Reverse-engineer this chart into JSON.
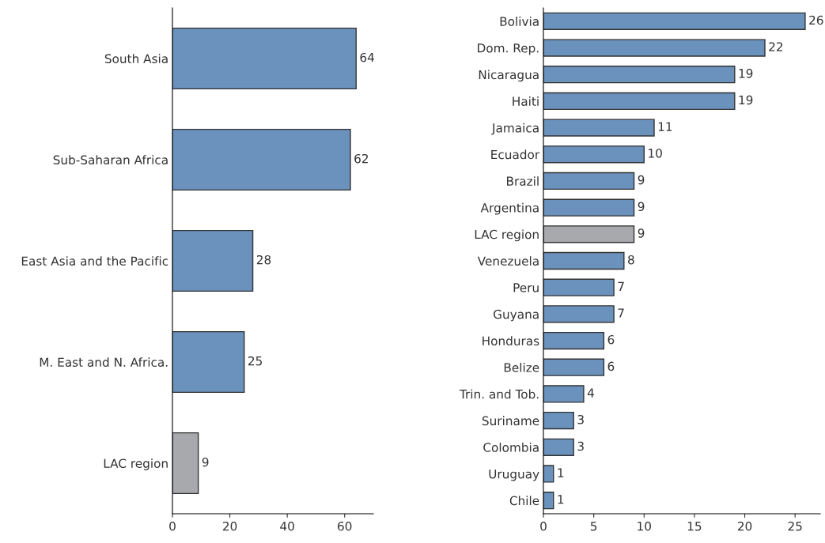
{
  "chart_data": [
    {
      "type": "bar",
      "orientation": "horizontal",
      "categories": [
        "South Asia",
        "Sub-Saharan Africa",
        "East Asia and the Pacific",
        "M. East and N. Africa.",
        "LAC region"
      ],
      "values": [
        64,
        62,
        28,
        25,
        9
      ],
      "colors": [
        "#6a92bd",
        "#6a92bd",
        "#6a92bd",
        "#6a92bd",
        "#a8a9ad"
      ],
      "xlim": [
        0,
        70
      ],
      "xticks": [
        0,
        20,
        40,
        60
      ],
      "data_labels": true,
      "grid": false,
      "legend": false
    },
    {
      "type": "bar",
      "orientation": "horizontal",
      "categories": [
        "Bolivia",
        "Dom. Rep.",
        "Nicaragua",
        "Haiti",
        "Jamaica",
        "Ecuador",
        "Brazil",
        "Argentina",
        "LAC region",
        "Venezuela",
        "Peru",
        "Guyana",
        "Honduras",
        "Belize",
        "Trin. and Tob.",
        "Suriname",
        "Colombia",
        "Uruguay",
        "Chile"
      ],
      "values": [
        26,
        22,
        19,
        19,
        11,
        10,
        9,
        9,
        9,
        8,
        7,
        7,
        6,
        6,
        4,
        3,
        3,
        1,
        1
      ],
      "colors": [
        "#6a92bd",
        "#6a92bd",
        "#6a92bd",
        "#6a92bd",
        "#6a92bd",
        "#6a92bd",
        "#6a92bd",
        "#6a92bd",
        "#a8a9ad",
        "#6a92bd",
        "#6a92bd",
        "#6a92bd",
        "#6a92bd",
        "#6a92bd",
        "#6a92bd",
        "#6a92bd",
        "#6a92bd",
        "#6a92bd",
        "#6a92bd"
      ],
      "xlim": [
        0,
        27.5
      ],
      "xticks": [
        0,
        5,
        10,
        15,
        20,
        25
      ],
      "data_labels": true,
      "grid": false,
      "legend": false
    }
  ]
}
